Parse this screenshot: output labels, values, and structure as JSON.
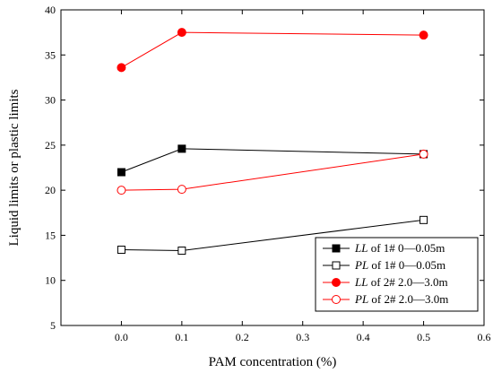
{
  "chart_data": {
    "type": "line",
    "title": "",
    "xlabel": "PAM concentration (%)",
    "ylabel": "Liquid limits or plastic limits",
    "xlim": [
      -0.1,
      0.6
    ],
    "ylim": [
      5,
      40
    ],
    "xticks": [
      0.0,
      0.1,
      0.2,
      0.3,
      0.4,
      0.5,
      0.6
    ],
    "xtick_labels": [
      "0.0",
      "0.1",
      "0.2",
      "0.3",
      "0.4",
      "0.5",
      "0.6"
    ],
    "yticks": [
      5,
      10,
      15,
      20,
      25,
      30,
      35,
      40
    ],
    "ytick_labels": [
      "5",
      "10",
      "15",
      "20",
      "25",
      "30",
      "35",
      "40"
    ],
    "grid": false,
    "legend_position": "bottom-right",
    "x": [
      0.0,
      0.1,
      0.5
    ],
    "series": [
      {
        "name_prefix": "LL",
        "name_suffix": " of 1# 0—0.05m",
        "values": [
          22.0,
          24.6,
          24.0
        ],
        "color": "#000000",
        "marker": "square",
        "filled": true
      },
      {
        "name_prefix": "PL",
        "name_suffix": " of 1# 0—0.05m",
        "values": [
          13.4,
          13.3,
          16.7
        ],
        "color": "#000000",
        "marker": "square",
        "filled": false
      },
      {
        "name_prefix": "LL",
        "name_suffix": " of 2# 2.0—3.0m",
        "values": [
          33.6,
          37.5,
          37.2
        ],
        "color": "#ff0000",
        "marker": "circle",
        "filled": true
      },
      {
        "name_prefix": "PL",
        "name_suffix": " of 2# 2.0—3.0m",
        "values": [
          20.0,
          20.1,
          24.0
        ],
        "color": "#ff0000",
        "marker": "circle",
        "filled": false
      }
    ]
  }
}
